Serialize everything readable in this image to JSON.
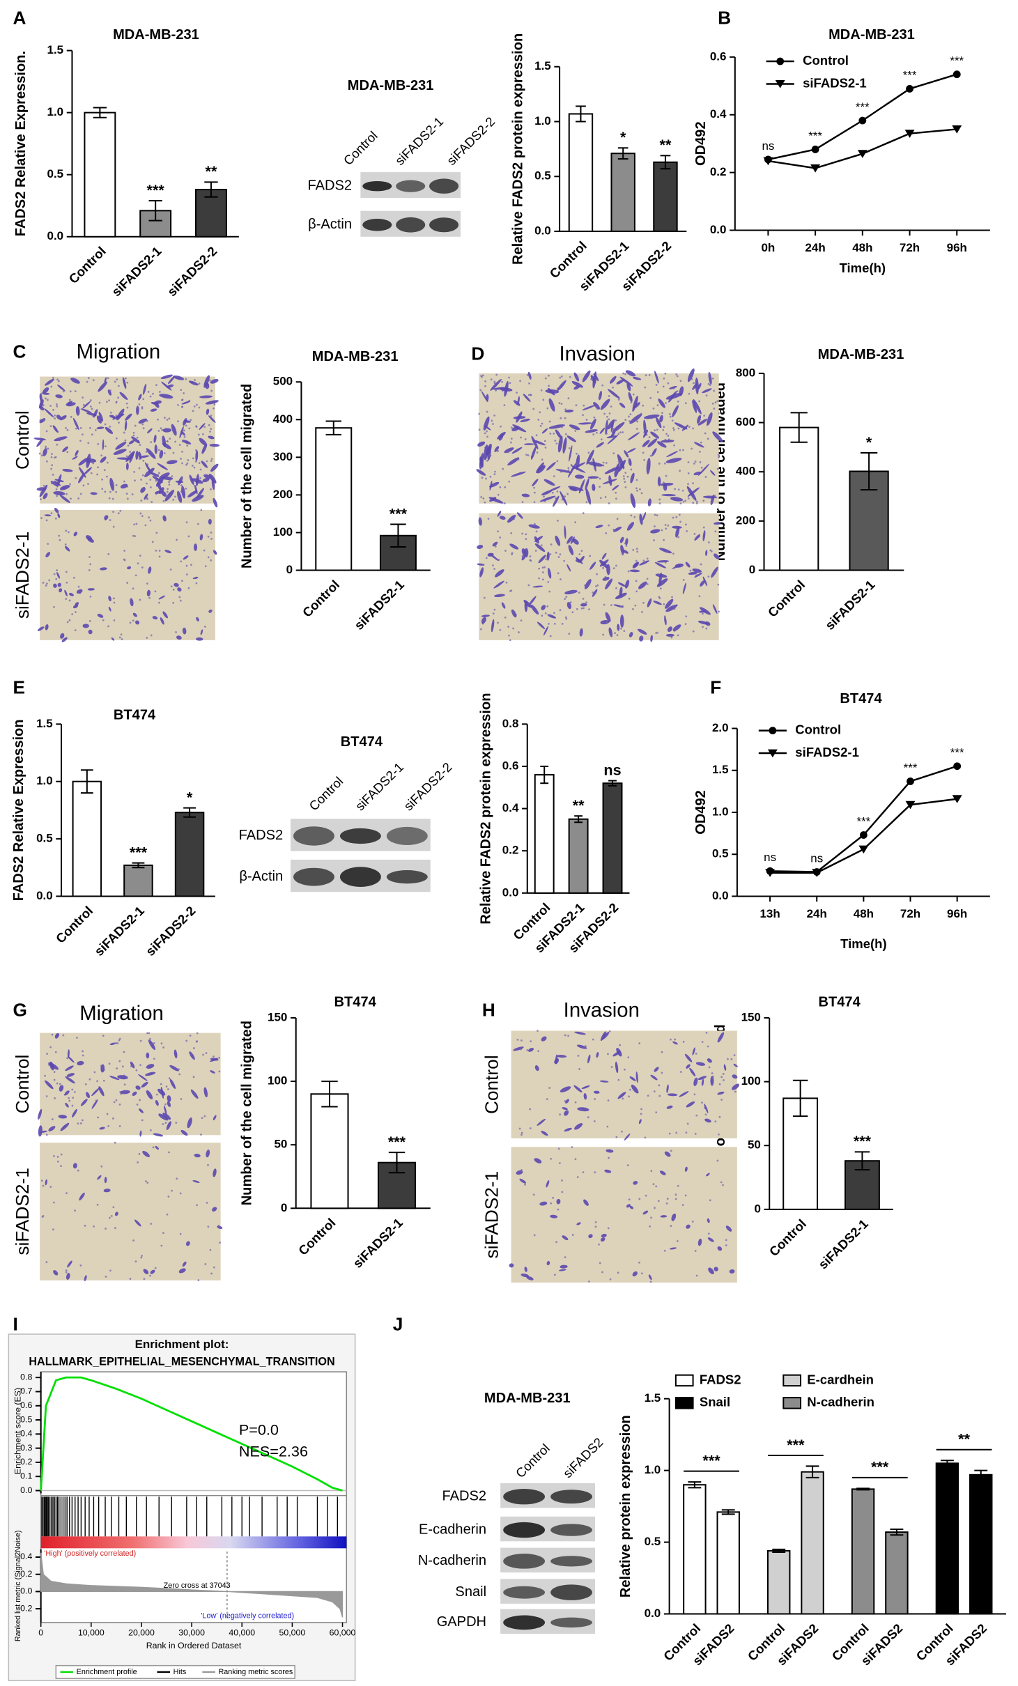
{
  "panels": [
    "A",
    "B",
    "C",
    "D",
    "E",
    "F",
    "G",
    "H",
    "I",
    "J"
  ],
  "chart_data": [
    {
      "type": "bar",
      "title": "MDA-MB-231",
      "ylabel": "FADS2 Relative Expression.",
      "categories": [
        "Control",
        "siFADS2-1",
        "siFADS2-2"
      ],
      "values": [
        1.0,
        0.21,
        0.38
      ],
      "errors": [
        0.04,
        0.08,
        0.06
      ],
      "significance": [
        null,
        "***",
        "**"
      ],
      "colors": [
        "#ffffff",
        "#8c8c8c",
        "#3c3c3c"
      ],
      "ylim": [
        0,
        1.5
      ],
      "yticks": [
        {
          "value": 0,
          "label": "0.0"
        },
        0.5,
        {
          "value": 1,
          "label": "1.0"
        },
        1.5
      ]
    },
    {
      "type": "bar",
      "ylabel": "Relative FADS2 protein expression",
      "categories": [
        "Control",
        "siFADS2-1",
        "siFADS2-2"
      ],
      "values": [
        1.07,
        0.71,
        0.63
      ],
      "errors": [
        0.07,
        0.05,
        0.06
      ],
      "significance": [
        null,
        "*",
        "**"
      ],
      "colors": [
        "#ffffff",
        "#8c8c8c",
        "#3c3c3c"
      ],
      "ylim": [
        0,
        1.5
      ],
      "yticks": [
        {
          "value": 0,
          "label": "0.0"
        },
        0.5,
        {
          "value": 1,
          "label": "1.0"
        },
        1.5
      ]
    },
    {
      "type": "line",
      "title": "MDA-MB-231",
      "xlabel": "Time(h)",
      "ylabel": "OD492",
      "categories": [
        "0h",
        "24h",
        "48h",
        "72h",
        "96h"
      ],
      "series": [
        {
          "name": "Control",
          "color": "#000000",
          "marker": "circle",
          "values": [
            0.245,
            0.28,
            0.38,
            0.49,
            0.54
          ]
        },
        {
          "name": "siFADS2-1",
          "color": "#000000",
          "marker": "triangle",
          "values": [
            0.24,
            0.215,
            0.265,
            0.335,
            0.35
          ]
        }
      ],
      "annotations": [
        "ns",
        "***",
        "***",
        "***",
        "***"
      ],
      "ylim": [
        0,
        0.6
      ],
      "yticks": [
        {
          "value": 0,
          "label": "0.0"
        },
        0.2,
        0.4,
        0.6
      ],
      "legend": "upper left"
    },
    {
      "type": "bar",
      "title": "MDA-MB-231",
      "ylabel": "Number of the cell migrated",
      "categories": [
        "Control",
        "siFADS2-1"
      ],
      "values": [
        378,
        92
      ],
      "errors": [
        18,
        30
      ],
      "significance": [
        null,
        "***"
      ],
      "colors": [
        "#ffffff",
        "#3c3c3c"
      ],
      "ylim": [
        0,
        500
      ],
      "yticks": [
        0,
        100,
        200,
        300,
        400,
        500
      ]
    },
    {
      "type": "bar",
      "title": "MDA-MB-231",
      "ylabel": "Number of the cell invaded",
      "categories": [
        "Control",
        "siFADS2-1"
      ],
      "values": [
        580,
        402
      ],
      "errors": [
        60,
        75
      ],
      "significance": [
        null,
        "*"
      ],
      "colors": [
        "#ffffff",
        "#595959"
      ],
      "ylim": [
        0,
        800
      ],
      "yticks": [
        0,
        200,
        400,
        600,
        800
      ]
    },
    {
      "type": "bar",
      "title": "BT474",
      "ylabel": "FADS2 Relative Expression",
      "categories": [
        "Control",
        "siFADS2-1",
        "siFADS2-2"
      ],
      "values": [
        1.0,
        0.27,
        0.73
      ],
      "errors": [
        0.1,
        0.02,
        0.04
      ],
      "significance": [
        null,
        "***",
        "*"
      ],
      "colors": [
        "#ffffff",
        "#8c8c8c",
        "#3c3c3c"
      ],
      "ylim": [
        0,
        1.5
      ],
      "yticks": [
        {
          "value": 0,
          "label": "0.0"
        },
        0.5,
        {
          "value": 1,
          "label": "1.0"
        },
        1.5
      ]
    },
    {
      "type": "bar",
      "ylabel": "Relative FADS2 protein expression",
      "categories": [
        "Control",
        "siFADS2-1",
        "siFADS2-2"
      ],
      "values": [
        0.56,
        0.35,
        0.52
      ],
      "errors": [
        0.04,
        0.015,
        0.012
      ],
      "significance": [
        null,
        "**",
        "ns"
      ],
      "colors": [
        "#ffffff",
        "#8c8c8c",
        "#3c3c3c"
      ],
      "ylim": [
        0,
        0.8
      ],
      "yticks": [
        {
          "value": 0,
          "label": "0.0"
        },
        0.2,
        0.4,
        0.6,
        0.8
      ]
    },
    {
      "type": "line",
      "title": "BT474",
      "xlabel": "Time(h)",
      "ylabel": "OD492",
      "categories": [
        "13h",
        "24h",
        "48h",
        "72h",
        "96h"
      ],
      "series": [
        {
          "name": "Control",
          "color": "#000000",
          "marker": "circle",
          "values": [
            0.3,
            0.29,
            0.73,
            1.37,
            1.55
          ]
        },
        {
          "name": "siFADS2-1",
          "color": "#000000",
          "marker": "triangle",
          "values": [
            0.28,
            0.28,
            0.56,
            1.09,
            1.16
          ]
        }
      ],
      "annotations": [
        "ns",
        "ns",
        "***",
        "***",
        "***"
      ],
      "ylim": [
        0,
        2
      ],
      "yticks": [
        {
          "value": 0,
          "label": "0.0"
        },
        0.5,
        {
          "value": 1,
          "label": "1.0"
        },
        1.5,
        {
          "value": 2,
          "label": "2.0"
        }
      ],
      "legend": "upper left"
    },
    {
      "type": "bar",
      "title": "BT474",
      "ylabel": "Number of the cell migrated",
      "categories": [
        "Control",
        "siFADS2-1"
      ],
      "values": [
        90,
        36
      ],
      "errors": [
        10,
        8
      ],
      "significance": [
        null,
        "***"
      ],
      "colors": [
        "#ffffff",
        "#3c3c3c"
      ],
      "ylim": [
        0,
        150
      ],
      "yticks": [
        0,
        50,
        100,
        150
      ]
    },
    {
      "type": "bar",
      "title": "BT474",
      "ylabel": "Number of the cell invaded",
      "categories": [
        "Control",
        "siFADS2-1"
      ],
      "values": [
        87,
        38
      ],
      "errors": [
        14,
        7
      ],
      "significance": [
        null,
        "***"
      ],
      "colors": [
        "#ffffff",
        "#3c3c3c"
      ],
      "ylim": [
        0,
        150
      ],
      "yticks": [
        0,
        50,
        100,
        150
      ]
    },
    {
      "type": "enrichment",
      "title": "Enrichment plot:",
      "subtitle": "HALLMARK_EPITHELIAL_MESENCHYMAL_TRANSITION",
      "ylabel": "Enrichment score (ES)",
      "xlabel": "Rank in Ordered Dataset",
      "color": "#00e000",
      "x": [
        0,
        1000,
        3000,
        5000,
        8000,
        10000,
        15000,
        20000,
        25000,
        30000,
        35000,
        40000,
        45000,
        50000,
        55000,
        58000,
        60000
      ],
      "values": [
        0,
        0.6,
        0.78,
        0.8,
        0.8,
        0.78,
        0.72,
        0.65,
        0.57,
        0.49,
        0.41,
        0.33,
        0.25,
        0.17,
        0.08,
        0.02,
        0
      ],
      "xlim": [
        0,
        60800
      ],
      "ylim": [
        -0.02,
        0.84
      ],
      "yticks": [
        {
          "value": 0,
          "label": "0.0"
        },
        0.1,
        0.2,
        0.3,
        0.4,
        0.5,
        0.6,
        0.7,
        0.8
      ],
      "xticks": [
        0,
        {
          "value": 10000,
          "label": "10,000"
        },
        {
          "value": 20000,
          "label": "20,000"
        },
        {
          "value": 30000,
          "label": "30,000"
        },
        {
          "value": 40000,
          "label": "40,000"
        },
        {
          "value": 50000,
          "label": "50,000"
        },
        {
          "value": 60000,
          "label": "60,000"
        }
      ],
      "annotations": [
        "P=0.0",
        "NES=2.36"
      ],
      "hits": [
        200,
        450,
        700,
        900,
        1100,
        1300,
        1500,
        1800,
        2100,
        2400,
        2700,
        3000,
        3300,
        3600,
        4000,
        4400,
        4800,
        5200,
        5700,
        6200,
        6800,
        7400,
        8000,
        8800,
        9600,
        10500,
        11500,
        12800,
        14000,
        15500,
        17000,
        19000,
        21000,
        23500,
        26000,
        29000,
        31000,
        33000,
        36000,
        38000,
        40000,
        41500,
        44000,
        47000,
        49000,
        51000,
        55000,
        57000,
        59000
      ],
      "metric": {
        "ylabel": "Ranked list metric (Signal2Noise)",
        "color": "#999999",
        "x": [
          0,
          500,
          2000,
          5000,
          10000,
          20000,
          30000,
          37043,
          45000,
          55000,
          58000,
          59500,
          60000
        ],
        "values": [
          0.45,
          0.2,
          0.12,
          0.09,
          0.07,
          0.05,
          0.02,
          0,
          -0.03,
          -0.07,
          -0.12,
          -0.2,
          -0.3
        ],
        "ylim": [
          -0.36,
          0.49
        ],
        "yticks": [
          0.4,
          0.2,
          {
            "value": 0,
            "label": "0.0"
          },
          -0.2
        ]
      },
      "zero_cross": 37043,
      "zero_cross_label": "Zero cross at 37043",
      "high_label": "'High' (positively correlated)",
      "low_label": "'Low' (negatively correlated)",
      "legend": [
        "Enrichment profile",
        "Hits",
        "Ranking metric scores"
      ]
    },
    {
      "type": "grouped_bar",
      "ylabel": "Relative protein expression",
      "categories": [
        "Control",
        "siFADS2"
      ],
      "series": [
        {
          "name": "FADS2",
          "color": "#ffffff",
          "values": [
            0.9,
            0.71
          ],
          "errors": [
            0.02,
            0.015
          ],
          "significance": "***"
        },
        {
          "name": "E-cardhein",
          "color": "#d0d0d0",
          "values": [
            0.44,
            0.99
          ],
          "errors": [
            0.01,
            0.04
          ],
          "significance": "***"
        },
        {
          "name": "N-cadherin",
          "color": "#8c8c8c",
          "values": [
            0.87,
            0.57
          ],
          "errors": [
            0.005,
            0.02
          ],
          "significance": "***"
        },
        {
          "name": "Snail",
          "color": "#000000",
          "values": [
            1.05,
            0.97
          ],
          "errors": [
            0.02,
            0.03
          ],
          "significance": "**"
        }
      ],
      "ylim": [
        0,
        1.5
      ],
      "yticks": [
        {
          "value": 0,
          "label": "0.0"
        },
        0.5,
        {
          "value": 1,
          "label": "1.0"
        },
        1.5
      ],
      "legend": "top"
    }
  ],
  "blots": [
    {
      "title": "MDA-MB-231",
      "lanes": [
        "Control",
        "siFADS2-1",
        "siFADS2-2"
      ],
      "rows": [
        "FADS2",
        "β-Actin"
      ]
    },
    {
      "title": "BT474",
      "lanes": [
        "Control",
        "siFADS2-1",
        "siFADS2-2"
      ],
      "rows": [
        "FADS2",
        "β-Actin"
      ]
    },
    {
      "title": "MDA-MB-231",
      "lanes": [
        "Control",
        "siFADS2"
      ],
      "rows": [
        "FADS2",
        "E-cadherin",
        "N-cadherin",
        "Snail",
        "GAPDH"
      ]
    }
  ],
  "micrographs": [
    {
      "title": "Migration",
      "rows": [
        "Control",
        "siFADS2-1"
      ]
    },
    {
      "title": "Invasion",
      "rows": [
        "Control",
        "siFADS2-1"
      ]
    },
    {
      "title": "Migration",
      "rows": [
        "Control",
        "siFADS2-1"
      ]
    },
    {
      "title": "Invasion",
      "rows": [
        "Control",
        "siFADS2-1"
      ]
    }
  ]
}
